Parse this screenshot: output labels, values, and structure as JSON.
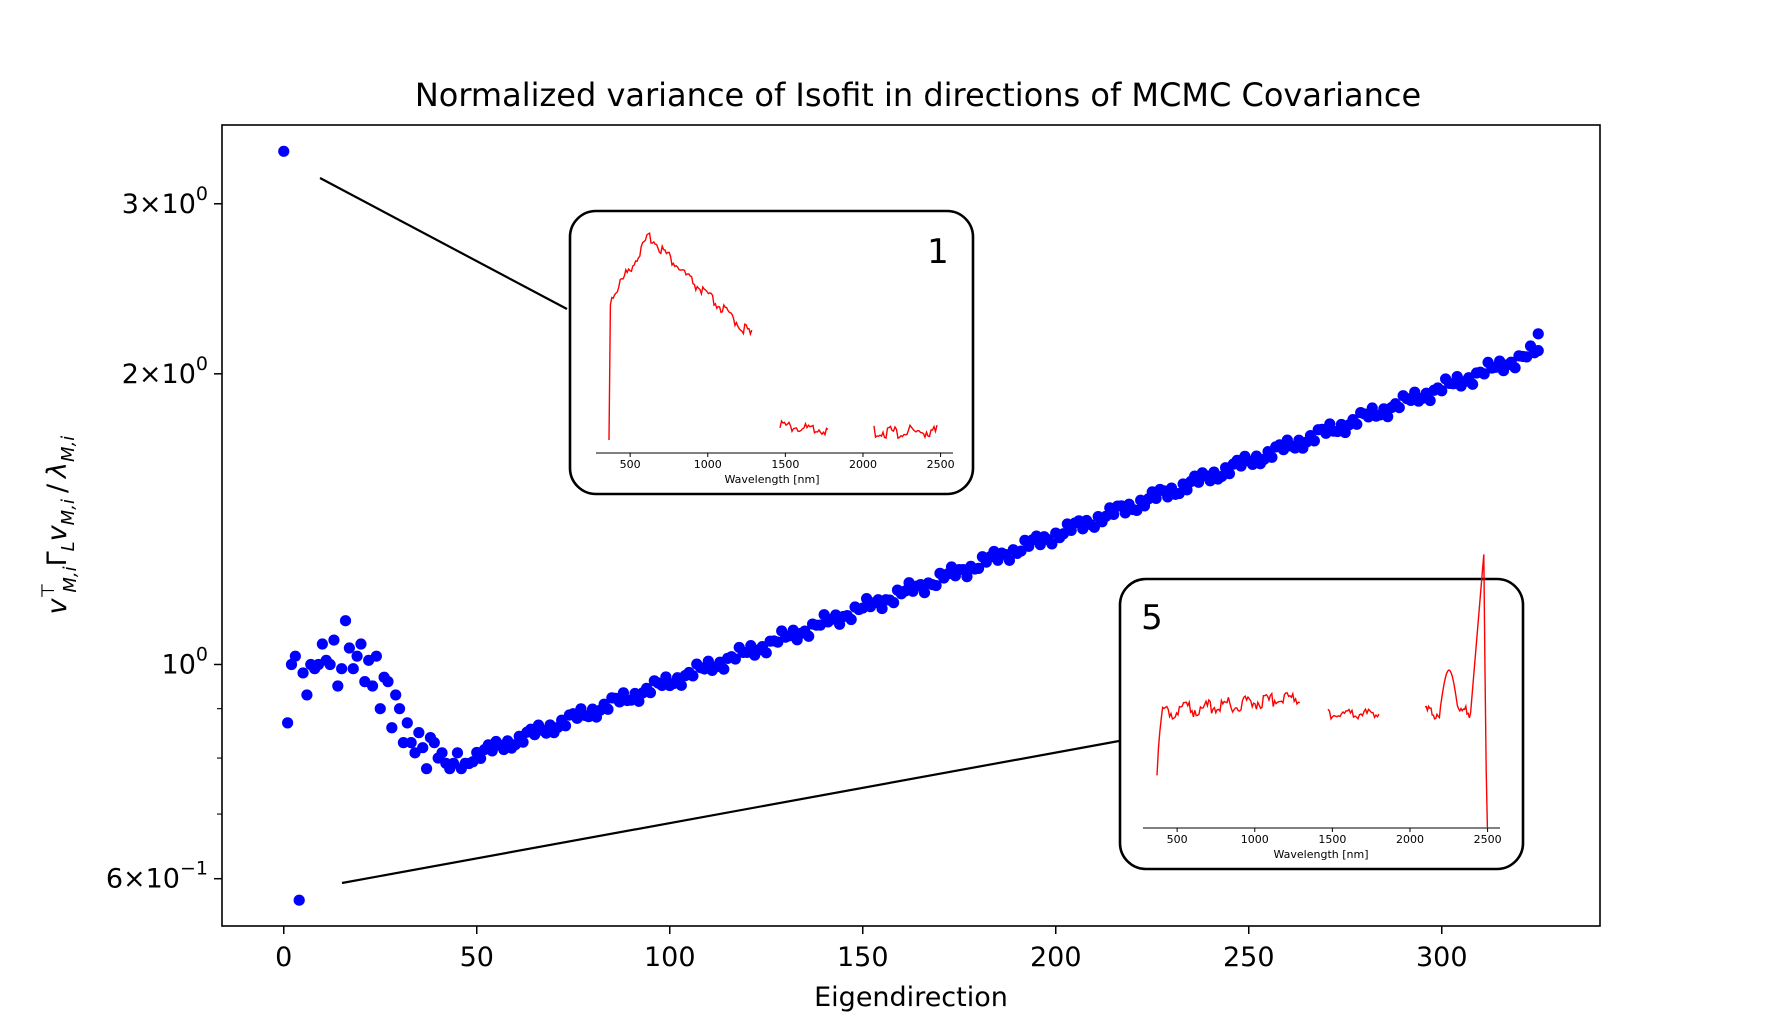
{
  "chart_data": {
    "type": "scatter",
    "title": "Normalized variance of Isofit in directions of MCMC Covariance",
    "xlabel": "Eigendirection",
    "ylabel": "v_{M,i}^T Γ_L v_{M,i} / λ_{M,i}",
    "ylabel_parts": {
      "v": "v",
      "sup": "⊤",
      "sub1": "M,i",
      "gamma": "Γ",
      "sub2": "L",
      "v2": "v",
      "sub3": "M,i",
      "slash": "/",
      "lambda": "λ",
      "sub4": "M,i"
    },
    "xlim": [
      -16,
      341
    ],
    "ylim": [
      0.536,
      3.62
    ],
    "yscale": "log",
    "x_ticks": [
      "0",
      "50",
      "100",
      "150",
      "200",
      "250",
      "300"
    ],
    "y_ticks": [
      {
        "value": 3,
        "mantissa": "3",
        "times": "×",
        "base": "10",
        "exp": "0"
      },
      {
        "value": 2,
        "mantissa": "2",
        "times": "×",
        "base": "10",
        "exp": "0"
      },
      {
        "value": 1,
        "mantissa": "",
        "times": "",
        "base": "10",
        "exp": "0"
      },
      {
        "value": 0.6,
        "mantissa": "6",
        "times": "×",
        "base": "10",
        "exp": "−1"
      }
    ],
    "series": [
      {
        "color": "#0000ff",
        "early_points": [
          [
            0,
            3.4
          ],
          [
            1,
            0.87
          ],
          [
            2,
            1.0
          ],
          [
            3,
            1.02
          ],
          [
            4,
            0.57
          ],
          [
            5,
            0.98
          ],
          [
            6,
            0.93
          ],
          [
            7,
            1.0
          ],
          [
            8,
            0.99
          ],
          [
            9,
            1.0
          ],
          [
            10,
            1.05
          ],
          [
            11,
            1.01
          ],
          [
            12,
            1.0
          ],
          [
            13,
            1.06
          ],
          [
            14,
            0.95
          ],
          [
            15,
            0.99
          ],
          [
            16,
            1.11
          ],
          [
            17,
            1.04
          ],
          [
            18,
            0.99
          ],
          [
            19,
            1.02
          ],
          [
            20,
            1.05
          ],
          [
            21,
            0.96
          ],
          [
            22,
            1.01
          ],
          [
            23,
            0.95
          ],
          [
            24,
            1.02
          ],
          [
            25,
            0.9
          ],
          [
            26,
            0.97
          ],
          [
            27,
            0.96
          ],
          [
            28,
            0.86
          ],
          [
            29,
            0.93
          ],
          [
            30,
            0.9
          ],
          [
            31,
            0.83
          ],
          [
            32,
            0.87
          ],
          [
            33,
            0.83
          ],
          [
            34,
            0.81
          ],
          [
            35,
            0.85
          ],
          [
            36,
            0.82
          ],
          [
            37,
            0.78
          ],
          [
            38,
            0.84
          ],
          [
            39,
            0.83
          ],
          [
            40,
            0.8
          ],
          [
            41,
            0.81
          ],
          [
            42,
            0.79
          ],
          [
            43,
            0.78
          ],
          [
            44,
            0.79
          ],
          [
            45,
            0.81
          ],
          [
            46,
            0.78
          ],
          [
            47,
            0.79
          ]
        ],
        "trend_start": [
          48,
          0.8
        ],
        "trend_end": [
          325,
          2.11
        ],
        "last_point": [
          325,
          2.2
        ]
      }
    ],
    "insets": [
      {
        "label": "1",
        "points_to": [
          0,
          3.4
        ],
        "xlabel": "Wavelength [nm]",
        "x_ticks": [
          "500",
          "1000",
          "1500",
          "2000",
          "2500"
        ],
        "line_color": "#ff0000"
      },
      {
        "label": "5",
        "points_to": [
          4,
          0.57
        ],
        "xlabel": "Wavelength [nm]",
        "x_ticks": [
          "500",
          "1000",
          "1500",
          "2000",
          "2500"
        ],
        "line_color": "#ff0000"
      }
    ],
    "grid": false,
    "legend": "none"
  }
}
